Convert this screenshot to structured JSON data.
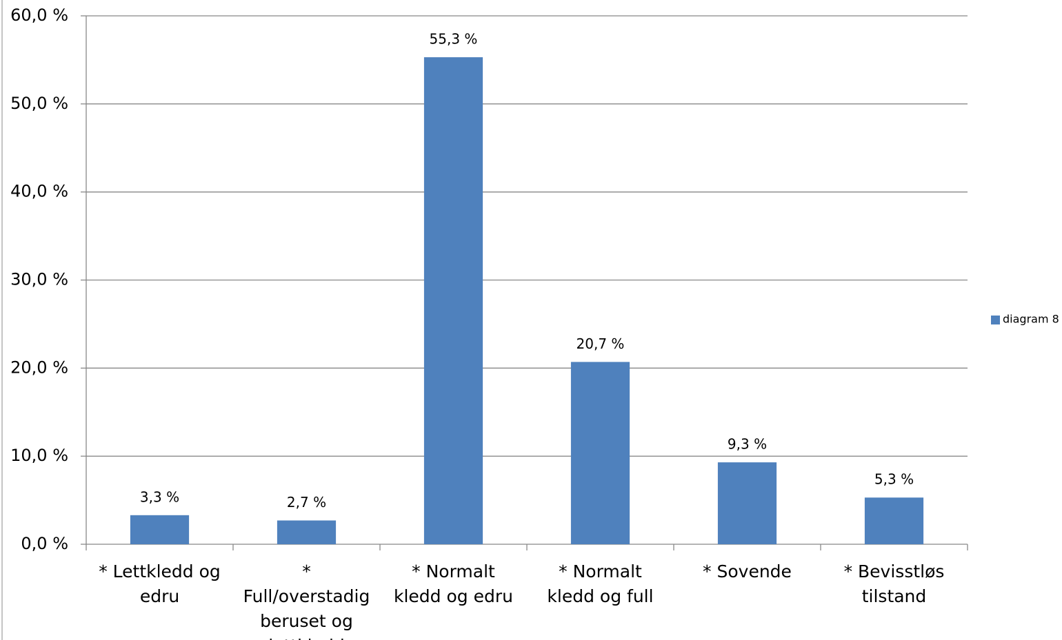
{
  "chart_data": {
    "type": "bar",
    "categories": [
      "* Lettkledd og edru",
      "* Full/overstadig beruset og lettkledd",
      "* Normalt kledd og edru",
      "* Normalt kledd og full",
      "* Sovende",
      "* Bevisstløs tilstand"
    ],
    "series": [
      {
        "name": "diagram 8",
        "color": "#4f81bd",
        "values": [
          3.3,
          2.7,
          55.3,
          20.7,
          9.3,
          5.3
        ],
        "value_labels": [
          "3,3 %",
          "2,7 %",
          "55,3 %",
          "20,7 %",
          "9,3 %",
          "5,3 %"
        ]
      }
    ],
    "ylim": [
      0,
      60
    ],
    "yticks": [
      {
        "value": 0,
        "label": "0,0 %"
      },
      {
        "value": 10,
        "label": "10,0 %"
      },
      {
        "value": 20,
        "label": "20,0 %"
      },
      {
        "value": 30,
        "label": "30,0 %"
      },
      {
        "value": 40,
        "label": "40,0 %"
      },
      {
        "value": 50,
        "label": "50,0 %"
      },
      {
        "value": 60,
        "label": "60,0 %"
      }
    ],
    "grid": true,
    "legend": "right"
  }
}
